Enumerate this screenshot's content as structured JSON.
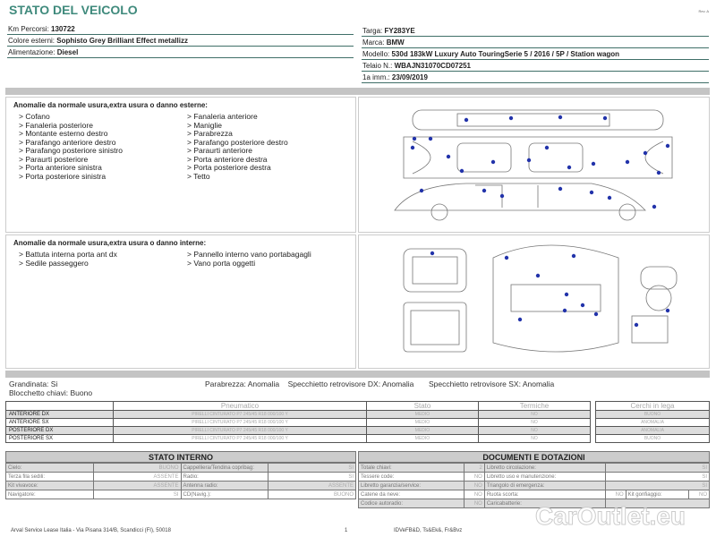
{
  "header": {
    "title": "STATO DEL VEICOLO",
    "rev": "Rev. A"
  },
  "vehicle_left": [
    {
      "label": "Km Percorsi:",
      "value": "130722"
    },
    {
      "label": "Colore esterni:",
      "value": "Sophisto Grey Brilliant Effect metallizz"
    },
    {
      "label": "Alimentazione:",
      "value": "Diesel"
    }
  ],
  "vehicle_right": [
    {
      "label": "Targa:",
      "value": "FY283YE"
    },
    {
      "label": "Marca:",
      "value": "BMW"
    },
    {
      "label": "Modello:",
      "value": "530d 183kW Luxury Auto TouringSerie 5 / 2016 / 5P / Station wagon"
    },
    {
      "label": "Telaio N.:",
      "value": "WBAJN31070CD07251"
    },
    {
      "label": "1a imm.:",
      "value": "23/09/2019"
    }
  ],
  "exterior": {
    "title": "Anomalie da normale usura,extra usura o danno esterne:",
    "col1": [
      "> Cofano",
      "> Fanaleria posteriore",
      "> Montante esterno destro",
      "> Parafango anteriore destro",
      "> Parafango posteriore sinistro",
      "> Paraurti posteriore",
      "> Porta anteriore sinistra",
      "> Porta posteriore sinistra"
    ],
    "col2": [
      "> Fanaleria anteriore",
      "> Maniglie",
      "> Parabrezza",
      "> Parafango posteriore destro",
      "> Paraurti anteriore",
      "> Porta anteriore destra",
      "> Porta posteriore destra",
      "> Tetto"
    ]
  },
  "interior": {
    "title": "Anomalie da normale usura,extra usura o danno interne:",
    "col1": [
      "> Battuta interna porta ant dx",
      "> Sedile passeggero"
    ],
    "col2": [
      "> Pannello interno vano portabagagli",
      "> Vano porta oggetti"
    ]
  },
  "checks": {
    "grandinata": "Grandinata: Si",
    "blocchetto": "Blocchetto chiavi: Buono",
    "parabrezza": "Parabrezza: Anomalia",
    "spec_dx": "Specchietto retrovisore DX: Anomalia",
    "spec_sx": "Specchietto retrovisore SX: Anomalia"
  },
  "tyres": {
    "headers": [
      "Pneumatico",
      "Stato",
      "Termiche"
    ],
    "rims_header": "Cerchi in lega",
    "rows": [
      {
        "pos": "ANTERIORE DX",
        "tyre": "PIRELLI CINTURATO P7 245/45 R18 000/100 Y",
        "stato": "MEDIO",
        "termiche": "NO",
        "rim": "BUONO"
      },
      {
        "pos": "ANTERIORE SX",
        "tyre": "PIRELLI CINTURATO P7 245/45 R18 000/100 Y",
        "stato": "MEDIO",
        "termiche": "NO",
        "rim": "ANOMALIA"
      },
      {
        "pos": "POSTERIORE DX",
        "tyre": "PIRELLI CINTURATO P7 245/45 R18 000/100 Y",
        "stato": "MEDIO",
        "termiche": "NO",
        "rim": "ANOMALIA"
      },
      {
        "pos": "POSTERIORE SX",
        "tyre": "PIRELLI CINTURATO P7 245/45 R18 000/100 Y",
        "stato": "MEDIO",
        "termiche": "NO",
        "rim": "BUONO"
      }
    ]
  },
  "stato_interno": {
    "title": "STATO INTERNO",
    "rows": [
      [
        "Cielo:",
        "BUONO",
        "Cappelliera/Tendina copribag:",
        "SI"
      ],
      [
        "Terza fila sedili:",
        "ASSENTE",
        "Radio:",
        "SI"
      ],
      [
        "Kit vivavoce:",
        "ASSENTE",
        "Antenna radio:",
        "ASSENTE"
      ],
      [
        "Navigatore:",
        "SI",
        "CD(Navig.):",
        "BUONO"
      ]
    ]
  },
  "documenti": {
    "title": "DOCUMENTI E DOTAZIONI",
    "rows": [
      [
        "Totale chiavi:",
        "2",
        "Libretto circolazione:",
        "SI"
      ],
      [
        "Tessere code:",
        "NO",
        "Libretto uso e manutenzione:",
        "SI"
      ],
      [
        "Libretto garanzia/service:",
        "NO",
        "Triangolo di emergenza:",
        "SI"
      ],
      [
        "Catene da neve:",
        "NO",
        "Ruota scorta:",
        "NO",
        "Kit gonfiaggio:",
        "NO"
      ],
      [
        "Codice autoradio:",
        "NO",
        "Caricabatterie:",
        ""
      ]
    ]
  },
  "footer": {
    "address": "Arval Service Lease Italia - Via Pisana 314/B, Scandicci (FI), 50018",
    "page": "1",
    "code": "IDVeFB&D, Ts&Ek&, Fr&Bvz",
    "watermark": "CarOutlet.eu"
  }
}
